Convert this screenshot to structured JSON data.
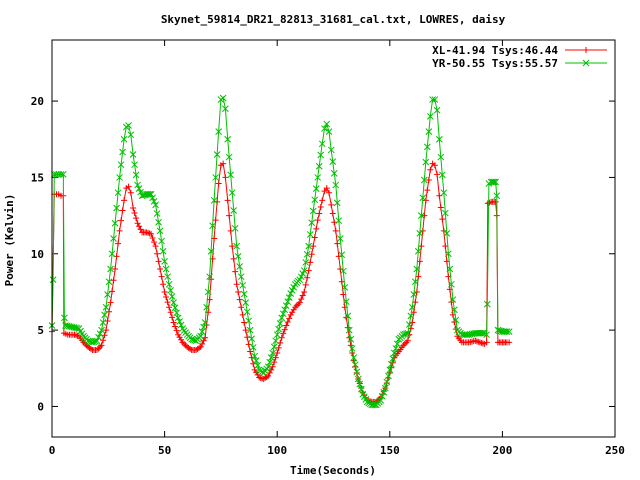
{
  "chart_data": {
    "type": "line",
    "title": "Skynet_59814_DR21_82813_31681_cal.txt, LOWRES, daisy",
    "xlabel": "Time(Seconds)",
    "ylabel": "Power (Kelvin)",
    "xlim": [
      0,
      250
    ],
    "ylim": [
      -2,
      24
    ],
    "xticks": [
      0,
      50,
      100,
      150,
      200,
      250
    ],
    "yticks": [
      0,
      5,
      10,
      15,
      20
    ],
    "grid": false,
    "legend_position": "top-right",
    "series": [
      {
        "name": "XL-41.94 Tsys:46.44",
        "color": "#ff0000",
        "marker": "plus",
        "points": [
          [
            0,
            4.9
          ],
          [
            1,
            13.9
          ],
          [
            2,
            13.9
          ],
          [
            3,
            13.9
          ],
          [
            4,
            13.8
          ],
          [
            5,
            13.8
          ],
          [
            5.3,
            4.8
          ],
          [
            7,
            4.7
          ],
          [
            10,
            4.7
          ],
          [
            12,
            4.6
          ],
          [
            14,
            4.2
          ],
          [
            16,
            3.9
          ],
          [
            18,
            3.7
          ],
          [
            20,
            3.7
          ],
          [
            22,
            4.0
          ],
          [
            24,
            5.0
          ],
          [
            26,
            6.8
          ],
          [
            28,
            9.0
          ],
          [
            30,
            11.5
          ],
          [
            32,
            13.5
          ],
          [
            33,
            14.3
          ],
          [
            34,
            14.4
          ],
          [
            35,
            14.0
          ],
          [
            36,
            13.0
          ],
          [
            38,
            12.0
          ],
          [
            40,
            11.4
          ],
          [
            42,
            11.4
          ],
          [
            44,
            11.3
          ],
          [
            46,
            10.5
          ],
          [
            48,
            9.0
          ],
          [
            50,
            7.5
          ],
          [
            52,
            6.5
          ],
          [
            54,
            5.5
          ],
          [
            56,
            4.7
          ],
          [
            58,
            4.2
          ],
          [
            60,
            3.9
          ],
          [
            62,
            3.7
          ],
          [
            64,
            3.7
          ],
          [
            66,
            3.9
          ],
          [
            68,
            4.5
          ],
          [
            70,
            7.0
          ],
          [
            72,
            11.0
          ],
          [
            74,
            14.6
          ],
          [
            75,
            15.8
          ],
          [
            76,
            15.9
          ],
          [
            77,
            15.0
          ],
          [
            78,
            13.5
          ],
          [
            80,
            10.5
          ],
          [
            82,
            8.0
          ],
          [
            84,
            6.5
          ],
          [
            86,
            5.0
          ],
          [
            88,
            3.6
          ],
          [
            90,
            2.4
          ],
          [
            92,
            1.9
          ],
          [
            94,
            1.8
          ],
          [
            96,
            2.0
          ],
          [
            98,
            2.6
          ],
          [
            100,
            3.5
          ],
          [
            102,
            4.5
          ],
          [
            104,
            5.3
          ],
          [
            106,
            6.0
          ],
          [
            108,
            6.5
          ],
          [
            110,
            6.8
          ],
          [
            112,
            7.5
          ],
          [
            114,
            8.9
          ],
          [
            116,
            10.5
          ],
          [
            118,
            12.2
          ],
          [
            120,
            13.5
          ],
          [
            121,
            14.1
          ],
          [
            122,
            14.3
          ],
          [
            123,
            14.0
          ],
          [
            124,
            13.2
          ],
          [
            126,
            11.5
          ],
          [
            128,
            9.0
          ],
          [
            130,
            6.5
          ],
          [
            132,
            4.5
          ],
          [
            134,
            3.0
          ],
          [
            136,
            1.8
          ],
          [
            138,
            0.9
          ],
          [
            140,
            0.4
          ],
          [
            142,
            0.3
          ],
          [
            144,
            0.3
          ],
          [
            146,
            0.6
          ],
          [
            148,
            1.2
          ],
          [
            150,
            2.2
          ],
          [
            152,
            3.2
          ],
          [
            154,
            3.6
          ],
          [
            156,
            4.0
          ],
          [
            158,
            4.3
          ],
          [
            160,
            5.5
          ],
          [
            162,
            7.5
          ],
          [
            164,
            10.5
          ],
          [
            166,
            13.5
          ],
          [
            168,
            15.5
          ],
          [
            169,
            15.9
          ],
          [
            170,
            15.8
          ],
          [
            171,
            15.2
          ],
          [
            172,
            13.8
          ],
          [
            174,
            11.5
          ],
          [
            176,
            8.5
          ],
          [
            178,
            6.0
          ],
          [
            180,
            4.6
          ],
          [
            182,
            4.2
          ],
          [
            185,
            4.2
          ],
          [
            188,
            4.3
          ],
          [
            190,
            4.2
          ],
          [
            192,
            4.1
          ],
          [
            193,
            4.2
          ],
          [
            193.5,
            13.3
          ],
          [
            195,
            13.4
          ],
          [
            197,
            13.4
          ],
          [
            197.5,
            12.5
          ],
          [
            198,
            4.2
          ],
          [
            200,
            4.2
          ],
          [
            202,
            4.2
          ],
          [
            203,
            4.2
          ]
        ]
      },
      {
        "name": "YR-50.55 Tsys:55.57",
        "color": "#00c000",
        "marker": "x",
        "points": [
          [
            0,
            5.3
          ],
          [
            0.5,
            8.3
          ],
          [
            1,
            15.2
          ],
          [
            2,
            15.2
          ],
          [
            3,
            15.2
          ],
          [
            4,
            15.2
          ],
          [
            5,
            15.2
          ],
          [
            5.5,
            5.8
          ],
          [
            6,
            5.3
          ],
          [
            9,
            5.2
          ],
          [
            12,
            5.1
          ],
          [
            14,
            4.6
          ],
          [
            16,
            4.3
          ],
          [
            18,
            4.2
          ],
          [
            20,
            4.3
          ],
          [
            22,
            5.0
          ],
          [
            24,
            6.5
          ],
          [
            26,
            9.0
          ],
          [
            28,
            12.0
          ],
          [
            30,
            15.0
          ],
          [
            32,
            17.5
          ],
          [
            33,
            18.3
          ],
          [
            34,
            18.4
          ],
          [
            35,
            17.8
          ],
          [
            36,
            16.5
          ],
          [
            38,
            14.5
          ],
          [
            40,
            13.8
          ],
          [
            42,
            13.9
          ],
          [
            44,
            13.9
          ],
          [
            46,
            13.2
          ],
          [
            48,
            11.5
          ],
          [
            50,
            9.5
          ],
          [
            52,
            8.0
          ],
          [
            54,
            6.8
          ],
          [
            56,
            5.8
          ],
          [
            58,
            5.1
          ],
          [
            60,
            4.7
          ],
          [
            62,
            4.4
          ],
          [
            64,
            4.3
          ],
          [
            66,
            4.6
          ],
          [
            68,
            5.5
          ],
          [
            70,
            8.5
          ],
          [
            72,
            13.5
          ],
          [
            74,
            18.0
          ],
          [
            75,
            20.1
          ],
          [
            76,
            20.2
          ],
          [
            77,
            19.5
          ],
          [
            78,
            17.5
          ],
          [
            80,
            14.0
          ],
          [
            82,
            10.5
          ],
          [
            84,
            8.5
          ],
          [
            86,
            6.8
          ],
          [
            88,
            5.0
          ],
          [
            90,
            3.3
          ],
          [
            92,
            2.4
          ],
          [
            94,
            2.2
          ],
          [
            96,
            2.6
          ],
          [
            98,
            3.5
          ],
          [
            100,
            4.7
          ],
          [
            102,
            5.8
          ],
          [
            104,
            6.6
          ],
          [
            106,
            7.4
          ],
          [
            108,
            8.0
          ],
          [
            110,
            8.3
          ],
          [
            112,
            8.9
          ],
          [
            114,
            10.5
          ],
          [
            116,
            12.8
          ],
          [
            118,
            15.0
          ],
          [
            120,
            17.2
          ],
          [
            121,
            18.2
          ],
          [
            122,
            18.5
          ],
          [
            123,
            18.0
          ],
          [
            124,
            16.8
          ],
          [
            126,
            14.5
          ],
          [
            128,
            11.0
          ],
          [
            130,
            7.8
          ],
          [
            132,
            5.0
          ],
          [
            134,
            3.2
          ],
          [
            136,
            1.8
          ],
          [
            138,
            0.8
          ],
          [
            140,
            0.3
          ],
          [
            142,
            0.1
          ],
          [
            144,
            0.1
          ],
          [
            146,
            0.4
          ],
          [
            148,
            1.2
          ],
          [
            150,
            2.4
          ],
          [
            152,
            3.5
          ],
          [
            154,
            4.4
          ],
          [
            156,
            4.7
          ],
          [
            158,
            4.8
          ],
          [
            160,
            6.5
          ],
          [
            162,
            9.0
          ],
          [
            164,
            12.5
          ],
          [
            166,
            16.0
          ],
          [
            168,
            19.0
          ],
          [
            169,
            20.1
          ],
          [
            170,
            20.1
          ],
          [
            171,
            19.4
          ],
          [
            172,
            17.5
          ],
          [
            174,
            14.0
          ],
          [
            176,
            10.0
          ],
          [
            178,
            7.0
          ],
          [
            180,
            5.0
          ],
          [
            182,
            4.7
          ],
          [
            185,
            4.7
          ],
          [
            188,
            4.8
          ],
          [
            190,
            4.8
          ],
          [
            192,
            4.8
          ],
          [
            193,
            4.7
          ],
          [
            193.3,
            6.7
          ],
          [
            194,
            14.6
          ],
          [
            195,
            14.7
          ],
          [
            197,
            14.7
          ],
          [
            197.5,
            13.8
          ],
          [
            198,
            5.0
          ],
          [
            200,
            4.9
          ],
          [
            202,
            4.9
          ],
          [
            203,
            4.9
          ]
        ]
      }
    ]
  }
}
